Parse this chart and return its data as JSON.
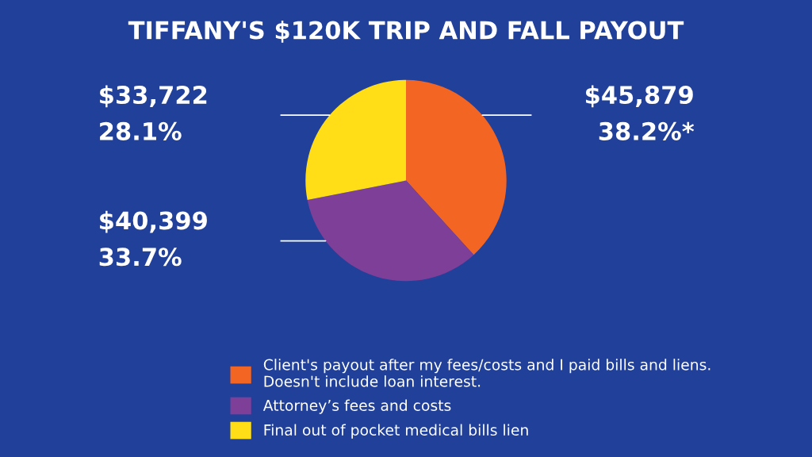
{
  "chart_data": {
    "type": "pie",
    "title": "TIFFANY'S $120K TRIP AND FALL PAYOUT",
    "categories": [
      "Client's payout after my fees/costs and I paid bills and liens.\nDoesn't include loan interest.",
      "Attorney’s fees and costs",
      "Final out of pocket medical bills lien"
    ],
    "values": [
      45879,
      40399,
      33722
    ],
    "value_labels": [
      "$45,879\n38.2%*",
      "$40,399\n33.7%",
      "$33,722\n28.1%"
    ],
    "colors": [
      "#f26522",
      "#7d3f98",
      "#ffde17"
    ],
    "legend": "bottom"
  }
}
